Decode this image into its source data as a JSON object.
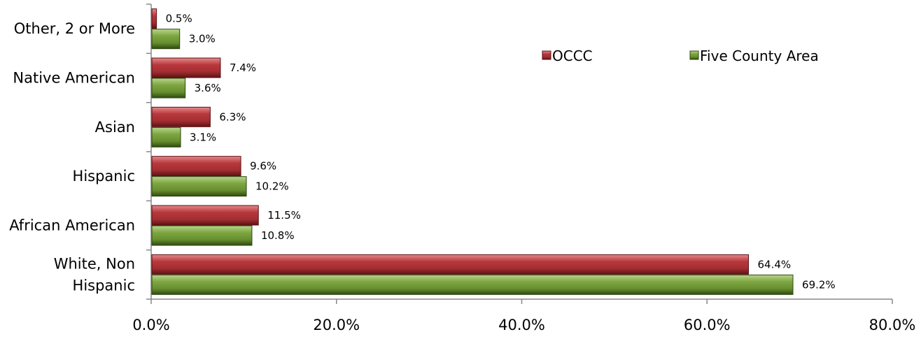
{
  "chart_data": {
    "type": "bar",
    "orientation": "horizontal",
    "title": "",
    "categories": [
      "White, Non Hispanic",
      "African American",
      "Hispanic",
      "Asian",
      "Native American",
      "Other, 2 or More"
    ],
    "category_lines": [
      [
        "White, Non",
        "Hispanic"
      ],
      [
        "African American"
      ],
      [
        "Hispanic"
      ],
      [
        "Asian"
      ],
      [
        "Native American"
      ],
      [
        "Other, 2 or More"
      ]
    ],
    "series": [
      {
        "name": "OCCC",
        "color": "#b8383c",
        "values": [
          64.4,
          11.5,
          9.6,
          6.3,
          7.4,
          0.5
        ],
        "labels": [
          "64.4%",
          "11.5%",
          "9.6%",
          "6.3%",
          "7.4%",
          "0.5%"
        ]
      },
      {
        "name": "Five County Area",
        "color": "#6e9a34",
        "values": [
          69.2,
          10.8,
          10.2,
          3.1,
          3.6,
          3.0
        ],
        "labels": [
          "69.2%",
          "10.8%",
          "10.2%",
          "3.1%",
          "3.6%",
          "3.0%"
        ]
      }
    ],
    "x_ticks": [
      "0.0%",
      "20.0%",
      "40.0%",
      "60.0%",
      "80.0%"
    ],
    "xlim": [
      0,
      80
    ],
    "legend_placement": "top-right",
    "grid": false
  }
}
